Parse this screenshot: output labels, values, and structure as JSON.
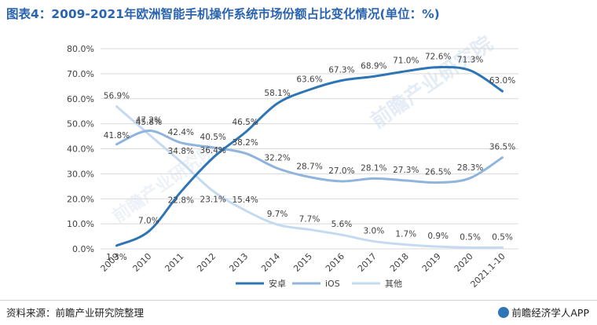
{
  "title": "图表4：2009-2021年欧洲智能手机操作系统市场份额占比变化情况(单位：%)",
  "source": "资料来源：前瞻产业研究院整理",
  "brand": "前瞻经济学人APP",
  "watermark": "前瞻产业研究院",
  "colors": {
    "title": "#2b64ae",
    "android": "#2e75b6",
    "ios": "#8fb4de",
    "other": "#c5daf1",
    "grid": "#d9d9d9",
    "text": "#404040"
  },
  "chart_data": {
    "type": "line",
    "title": "",
    "xlabel": "",
    "ylabel": "",
    "ylim": [
      0,
      80
    ],
    "yticks": [
      "0.0%",
      "10.0%",
      "20.0%",
      "30.0%",
      "40.0%",
      "50.0%",
      "60.0%",
      "70.0%",
      "80.0%"
    ],
    "grid": true,
    "legend_position": "bottom",
    "categories": [
      "2009",
      "2010",
      "2011",
      "2012",
      "2013",
      "2014",
      "2015",
      "2016",
      "2017",
      "2018",
      "2019",
      "2020",
      "2021.1-10"
    ],
    "series": [
      {
        "name": "安卓",
        "color": "#2e75b6",
        "values": [
          1.3,
          7.0,
          22.8,
          36.4,
          46.5,
          58.1,
          63.6,
          67.3,
          68.9,
          71.0,
          72.6,
          71.3,
          63.0
        ],
        "labels": [
          "1.3%",
          "7.0%",
          "22.8%",
          "36.4%",
          "46.5%",
          "58.1%",
          "63.6%",
          "67.3%",
          "68.9%",
          "71.0%",
          "72.6%",
          "71.3%",
          "63.0%"
        ]
      },
      {
        "name": "iOS",
        "color": "#8fb4de",
        "values": [
          41.8,
          47.2,
          42.4,
          40.5,
          38.2,
          32.2,
          28.7,
          27.0,
          28.1,
          27.3,
          26.5,
          28.3,
          36.5
        ],
        "labels": [
          "41.8%",
          "47.2%",
          "42.4%",
          "40.5%",
          "38.2%",
          "32.2%",
          "28.7%",
          "27.0%",
          "28.1%",
          "27.3%",
          "26.5%",
          "28.3%",
          "36.5%"
        ]
      },
      {
        "name": "其他",
        "color": "#c5daf1",
        "values": [
          56.9,
          45.8,
          34.8,
          23.1,
          15.4,
          9.7,
          7.7,
          5.6,
          3.0,
          1.7,
          0.9,
          0.5,
          0.5
        ],
        "labels": [
          "56.9%",
          "45.8%",
          "34.8%",
          "23.1%",
          "15.4%",
          "9.7%",
          "7.7%",
          "5.6%",
          "3.0%",
          "1.7%",
          "0.9%",
          "0.5%",
          "0.5%"
        ]
      }
    ]
  }
}
